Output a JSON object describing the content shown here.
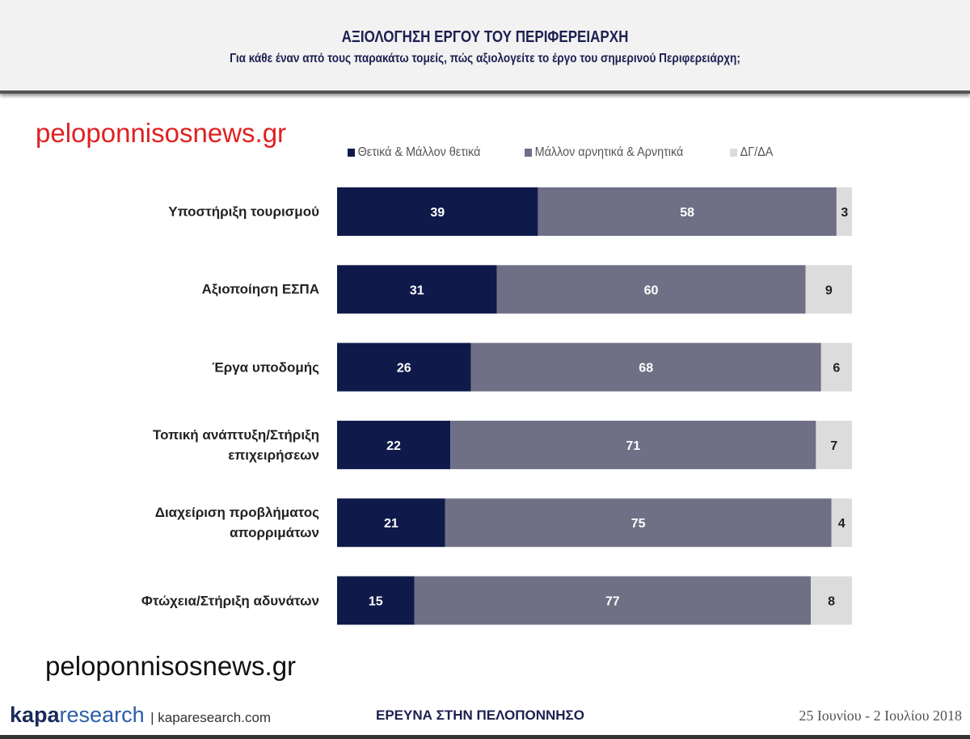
{
  "header": {
    "title": "ΑΞΙΟΛΟΓΗΣΗ ΕΡΓΟΥ ΤΟΥ ΠΕΡΙΦΕΡΕΙΑΡΧΗ",
    "subtitle": "Για κάθε έναν από τους παρακάτω τομείς, πώς αξιολογείτε το έργο του σημερινού Περιφερειάρχη;"
  },
  "watermark": "peloponnisosnews.gr",
  "footer": {
    "logo_a": "kapa",
    "logo_b": "research",
    "site": "| kaparesearch.com",
    "center": "ΕΡΕΥΝΑ ΣΤΗΝ ΠΕΛΟΠΟΝΝΗΣΟ",
    "date": "25 Ιουνίου - 2 Ιουλίου 2018"
  },
  "chart_data": {
    "type": "bar",
    "stacked": true,
    "orientation": "horizontal",
    "categories": [
      "Υποστήριξη τουρισμού",
      "Αξιοποίηση ΕΣΠΑ",
      "Έργα υποδομής",
      "Τοπική ανάπτυξη/Στήριξη επιχειρήσεων",
      "Διαχείριση προβλήματος απορριμάτων",
      "Φτώχεια/Στήριξη αδυνάτων"
    ],
    "series": [
      {
        "name": "Θετικά & Μάλλον θετικά",
        "color": "#0f1a4a",
        "values": [
          39,
          31,
          26,
          22,
          21,
          15
        ]
      },
      {
        "name": "Μάλλον αρνητικά & Αρνητικά",
        "color": "#6f7086",
        "values": [
          58,
          60,
          68,
          71,
          75,
          77
        ]
      },
      {
        "name": "ΔΓ/ΔΑ",
        "color": "#dcdcdc",
        "values": [
          3,
          9,
          6,
          7,
          4,
          8
        ]
      }
    ],
    "xlim": [
      0,
      100
    ],
    "legend": "top"
  }
}
